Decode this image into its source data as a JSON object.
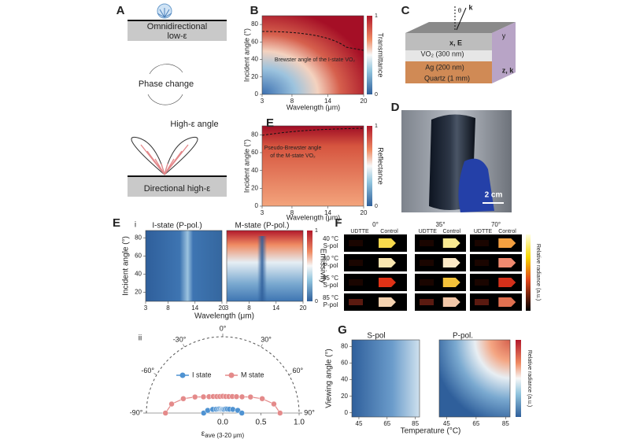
{
  "panel_a": {
    "label": "A",
    "top": [
      "Omnidirectional",
      "low-ε"
    ],
    "middle": "Phase change",
    "angle": "High-ε angle",
    "bottom": "Directional high-ε"
  },
  "panel_b": {
    "label": "B",
    "ylabel": "Incident angle (°)",
    "xlabel": "Wavelength (μm)",
    "colorbar": "Transmittance",
    "annotation": "Brewster angle of the I-state VO₂",
    "xlim": [
      3,
      20
    ],
    "xticks": [
      3,
      8,
      14,
      20
    ],
    "ylim": [
      0,
      90
    ],
    "yticks": [
      0,
      20,
      40,
      60,
      80
    ],
    "cblim": [
      0,
      1
    ],
    "cbticks": [
      0,
      1
    ]
  },
  "panel_c": {
    "label": "C",
    "theta": "θ",
    "k": "k",
    "xE": "x, E",
    "y": "y",
    "zk": "z, k",
    "layers": [
      "VO₂ (300 nm)",
      "Ag (200 nm)",
      "Quartz (1 mm)"
    ]
  },
  "panel_d": {
    "label": "D",
    "scale": "2 cm"
  },
  "panel_e_top": {
    "label": "E",
    "ylabel": "Incident angle (°)",
    "xlabel": "Wavelength (μm)",
    "colorbar": "Reflectance",
    "annotation": [
      "Pseudo-Brewster angle",
      "of the M-state VO₂"
    ],
    "xlim": [
      3,
      20
    ],
    "xticks": [
      3,
      8,
      14,
      20
    ],
    "ylim": [
      0,
      90
    ],
    "yticks": [
      0,
      20,
      40,
      60,
      80
    ],
    "cblim": [
      0,
      1
    ],
    "cbticks": [
      0,
      1
    ]
  },
  "panel_e": {
    "label": "E",
    "sub_i": "i",
    "titles": [
      "I-state (P-pol.)",
      "M-state (P-pol.)"
    ],
    "ylabel": "Incident angle (°)",
    "xlabel": "Wavelength (μm)",
    "colorbar": "Emissivity",
    "xlim": [
      3,
      20
    ],
    "xticks": [
      3,
      8,
      14,
      20
    ],
    "ylim": [
      10,
      88
    ],
    "yticks": [
      20,
      40,
      60,
      80
    ],
    "cblim": [
      0,
      1
    ],
    "cbticks": [
      0,
      1
    ],
    "sub_ii": "ii",
    "polar": {
      "angle_ticks": [
        {
          "value": -90,
          "label": "-90°"
        },
        {
          "value": -60,
          "label": "-60°"
        },
        {
          "value": -30,
          "label": "-30°"
        },
        {
          "value": 0,
          "label": "0°"
        },
        {
          "value": 30,
          "label": "30°"
        },
        {
          "value": 60,
          "label": "60°"
        },
        {
          "value": 90,
          "label": "90°"
        }
      ],
      "rlim": [
        0,
        1
      ],
      "rticks": [
        {
          "value": 0,
          "label": "0.0"
        },
        {
          "value": 0.5,
          "label": "0.5"
        },
        {
          "value": 1,
          "label": "1.0"
        }
      ],
      "xlabel": {
        "symbol": "ε",
        "subscript": "ave (3-20 μm)"
      },
      "angles": [
        -90,
        -80,
        -70,
        -60,
        -50,
        -40,
        -30,
        -20,
        -10,
        0,
        10,
        20,
        30,
        40,
        50,
        60,
        70,
        80,
        90
      ],
      "series": [
        {
          "name": "I state",
          "color": "#4f93d2",
          "values": [
            0.25,
            0.2,
            0.14,
            0.1,
            0.08,
            0.07,
            0.06,
            0.05,
            0.05,
            0.05,
            0.05,
            0.05,
            0.06,
            0.07,
            0.08,
            0.1,
            0.14,
            0.2,
            0.25
          ]
        },
        {
          "name": "M state",
          "color": "#e48a8a",
          "values": [
            0.75,
            0.68,
            0.55,
            0.42,
            0.33,
            0.28,
            0.25,
            0.23,
            0.22,
            0.22,
            0.22,
            0.23,
            0.25,
            0.28,
            0.33,
            0.42,
            0.55,
            0.68,
            0.75
          ]
        }
      ]
    }
  },
  "panel_f": {
    "label": "F",
    "angles": [
      "0°",
      "35°",
      "70°"
    ],
    "samples": [
      "UDTTE",
      "Control"
    ],
    "rows": [
      [
        "40 °C",
        "S-pol"
      ],
      [
        "40 °C",
        "P-pol"
      ],
      [
        "85 °C",
        "S-pol"
      ],
      [
        "85 °C",
        "P-pol"
      ]
    ],
    "colorbar": "Relative radiance (a.u.)"
  },
  "panel_g": {
    "label": "G",
    "titles": [
      "S-pol",
      "P-pol."
    ],
    "ylabel": "Viewing angle (°)",
    "xlabel": "Temperature (°C)",
    "colorbar": "Relative radiance (a.u.)",
    "xlim": [
      40,
      88
    ],
    "xticks": [
      45,
      65,
      85
    ],
    "ylim": [
      -5,
      88
    ],
    "yticks": [
      0,
      20,
      40,
      60,
      80
    ]
  }
}
